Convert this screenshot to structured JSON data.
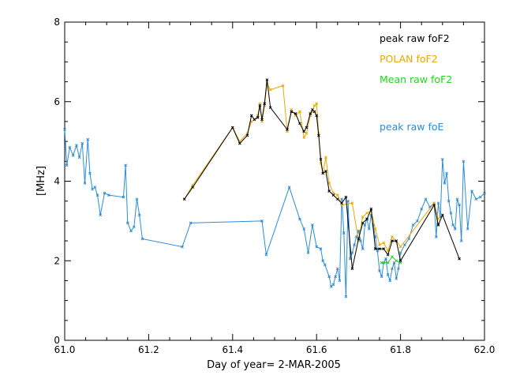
{
  "chart_data": {
    "type": "line",
    "xlabel": "Day of year= 2-MAR-2005",
    "ylabel": "[MHz]",
    "xlim": [
      61.0,
      62.0
    ],
    "ylim": [
      0,
      8
    ],
    "x_ticks": [
      61.0,
      61.2,
      61.4,
      61.6,
      61.8,
      62.0
    ],
    "x_tick_labels": [
      "61.0",
      "61.2",
      "61.4",
      "61.6",
      "61.8",
      "62.0"
    ],
    "y_ticks": [
      0,
      2,
      4,
      6,
      8
    ],
    "y_tick_labels": [
      "0",
      "2",
      "4",
      "6",
      "8"
    ],
    "grid": false,
    "legend_position": "top-right",
    "series": [
      {
        "name": "peak raw foF2",
        "color": "#000000",
        "x": [
          61.285,
          61.305,
          61.4,
          61.417,
          61.435,
          61.445,
          61.452,
          61.46,
          61.465,
          61.47,
          61.476,
          61.482,
          61.49,
          61.53,
          61.54,
          61.55,
          61.56,
          61.57,
          61.576,
          61.585,
          61.59,
          61.595,
          61.6,
          61.605,
          61.61,
          61.615,
          61.622,
          61.63,
          61.64,
          61.65,
          61.66,
          61.67,
          61.685,
          61.7,
          61.71,
          61.72,
          61.73,
          61.74,
          61.75,
          61.76,
          61.77,
          61.78,
          61.79,
          61.8,
          61.88,
          61.89,
          61.9,
          61.94
        ],
        "y": [
          3.55,
          3.85,
          5.35,
          4.95,
          5.15,
          5.65,
          5.55,
          5.6,
          5.9,
          5.55,
          5.95,
          6.55,
          5.85,
          5.3,
          5.75,
          5.7,
          5.45,
          5.25,
          5.35,
          5.7,
          5.8,
          5.75,
          5.65,
          5.15,
          4.55,
          4.2,
          4.25,
          3.75,
          3.65,
          3.55,
          3.45,
          3.6,
          1.8,
          2.55,
          2.95,
          3.05,
          3.3,
          2.3,
          2.3,
          2.3,
          2.15,
          2.5,
          2.5,
          2.0,
          3.4,
          2.9,
          3.15,
          2.05
        ]
      },
      {
        "name": "POLAN foF2",
        "color": "#e6a800",
        "x": [
          61.285,
          61.305,
          61.4,
          61.417,
          61.435,
          61.445,
          61.452,
          61.46,
          61.465,
          61.47,
          61.476,
          61.482,
          61.49,
          61.52,
          61.53,
          61.54,
          61.55,
          61.56,
          61.57,
          61.576,
          61.585,
          61.59,
          61.595,
          61.6,
          61.605,
          61.61,
          61.615,
          61.622,
          61.63,
          61.64,
          61.65,
          61.66,
          61.685,
          61.7,
          61.71,
          61.72,
          61.73,
          61.74,
          61.75,
          61.76,
          61.77,
          61.78,
          61.79,
          61.8,
          61.88,
          61.89
        ],
        "y": [
          3.55,
          3.9,
          5.35,
          5.0,
          5.2,
          5.5,
          5.55,
          5.65,
          5.95,
          5.5,
          5.9,
          6.45,
          6.3,
          6.4,
          5.25,
          5.8,
          5.65,
          5.75,
          5.1,
          5.2,
          5.65,
          5.75,
          5.9,
          5.95,
          5.2,
          4.45,
          4.2,
          4.6,
          3.95,
          3.7,
          3.65,
          3.4,
          3.45,
          2.5,
          3.1,
          3.2,
          3.25,
          2.8,
          2.4,
          2.45,
          2.25,
          2.6,
          2.5,
          2.35,
          3.45,
          3.05
        ]
      },
      {
        "name": "Mean raw foF2",
        "color": "#22d422",
        "x": [
          61.755,
          61.77,
          61.78,
          61.79,
          61.8
        ],
        "y": [
          1.95,
          1.95,
          2.1,
          2.0,
          1.95
        ]
      },
      {
        "name": "peak raw foE",
        "color": "#2e8bd6",
        "x": [
          61.0,
          61.005,
          61.012,
          61.02,
          61.028,
          61.035,
          61.042,
          61.048,
          61.055,
          61.06,
          61.066,
          61.072,
          61.078,
          61.085,
          61.095,
          61.105,
          61.14,
          61.145,
          61.15,
          61.158,
          61.165,
          61.172,
          61.178,
          61.185,
          61.28,
          61.3,
          61.47,
          61.48,
          61.535,
          61.56,
          61.57,
          61.58,
          61.59,
          61.6,
          61.61,
          61.615,
          61.62,
          61.63,
          61.635,
          61.64,
          61.645,
          61.65,
          61.655,
          61.66,
          61.665,
          61.67,
          61.675,
          61.68,
          61.685,
          61.69,
          61.695,
          61.7,
          61.705,
          61.71,
          61.715,
          61.72,
          61.725,
          61.73,
          61.735,
          61.74,
          61.745,
          61.75,
          61.755,
          61.76,
          61.765,
          61.77,
          61.775,
          61.78,
          61.785,
          61.79,
          61.795,
          61.8,
          61.81,
          61.82,
          61.83,
          61.84,
          61.85,
          61.86,
          61.87,
          61.88,
          61.885,
          61.89,
          61.895,
          61.9,
          61.905,
          61.91,
          61.915,
          61.92,
          61.925,
          61.93,
          61.935,
          61.94,
          61.945,
          61.95,
          61.96,
          61.97,
          61.98,
          61.99,
          62.0
        ],
        "y": [
          5.3,
          4.4,
          4.85,
          4.65,
          4.9,
          4.6,
          4.95,
          3.95,
          5.05,
          4.2,
          3.8,
          3.85,
          3.65,
          3.15,
          3.7,
          3.65,
          3.6,
          4.4,
          2.95,
          2.75,
          2.85,
          3.55,
          3.15,
          2.55,
          2.35,
          2.95,
          3.0,
          2.15,
          3.85,
          3.05,
          2.8,
          2.2,
          2.9,
          2.35,
          2.3,
          2.0,
          1.9,
          1.6,
          1.35,
          1.4,
          1.6,
          1.8,
          1.5,
          3.55,
          2.7,
          1.1,
          3.5,
          2.05,
          2.2,
          2.4,
          2.6,
          2.75,
          2.5,
          2.3,
          2.9,
          3.05,
          2.8,
          3.15,
          2.9,
          2.6,
          2.25,
          1.75,
          1.6,
          1.95,
          2.05,
          1.65,
          1.5,
          1.8,
          1.95,
          1.55,
          1.8,
          2.2,
          2.4,
          2.55,
          2.9,
          3.0,
          3.3,
          3.55,
          3.35,
          3.45,
          2.6,
          3.45,
          3.1,
          4.55,
          3.95,
          4.2,
          3.5,
          3.2,
          2.9,
          2.8,
          3.55,
          3.4,
          2.5,
          4.5,
          2.8,
          3.75,
          3.55,
          3.6,
          3.7
        ]
      }
    ]
  }
}
